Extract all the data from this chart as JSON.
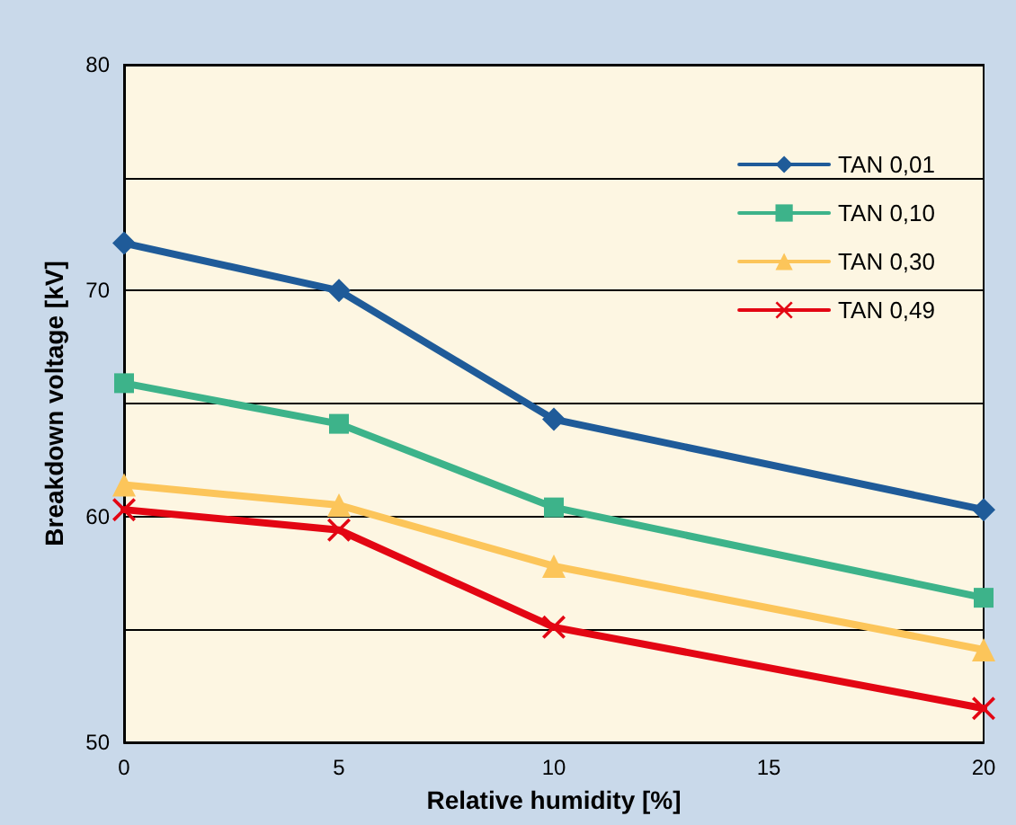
{
  "chart_data": {
    "type": "line",
    "xlabel": "Relative humidity [%]",
    "ylabel": "Breakdown voltage [kV]",
    "x": [
      0,
      5,
      10,
      20
    ],
    "series": [
      {
        "name": "TAN 0,01",
        "color": "#1f5b99",
        "marker": "diamond",
        "values": [
          72.1,
          70,
          64.3,
          60.3
        ]
      },
      {
        "name": "TAN 0,10",
        "color": "#3db38a",
        "marker": "square",
        "values": [
          65.9,
          64.1,
          60.4,
          56.4
        ]
      },
      {
        "name": "TAN 0,30",
        "color": "#fcc55a",
        "marker": "triangle",
        "values": [
          61.4,
          60.5,
          57.8,
          54.1
        ]
      },
      {
        "name": "TAN 0,49",
        "color": "#e30613",
        "marker": "cross",
        "values": [
          60.3,
          59.4,
          55.1,
          51.5
        ]
      }
    ],
    "xlim": [
      0,
      20
    ],
    "xticks": [
      0,
      5,
      10,
      15,
      20
    ],
    "ylim": [
      50,
      80
    ],
    "yticks": [
      50,
      {
        "value": 55,
        "label": null
      },
      60,
      {
        "value": 65,
        "label": null
      },
      70,
      {
        "value": 75,
        "label": null
      },
      80
    ],
    "grid": "y",
    "legend": "top right",
    "line_style": "solid"
  }
}
